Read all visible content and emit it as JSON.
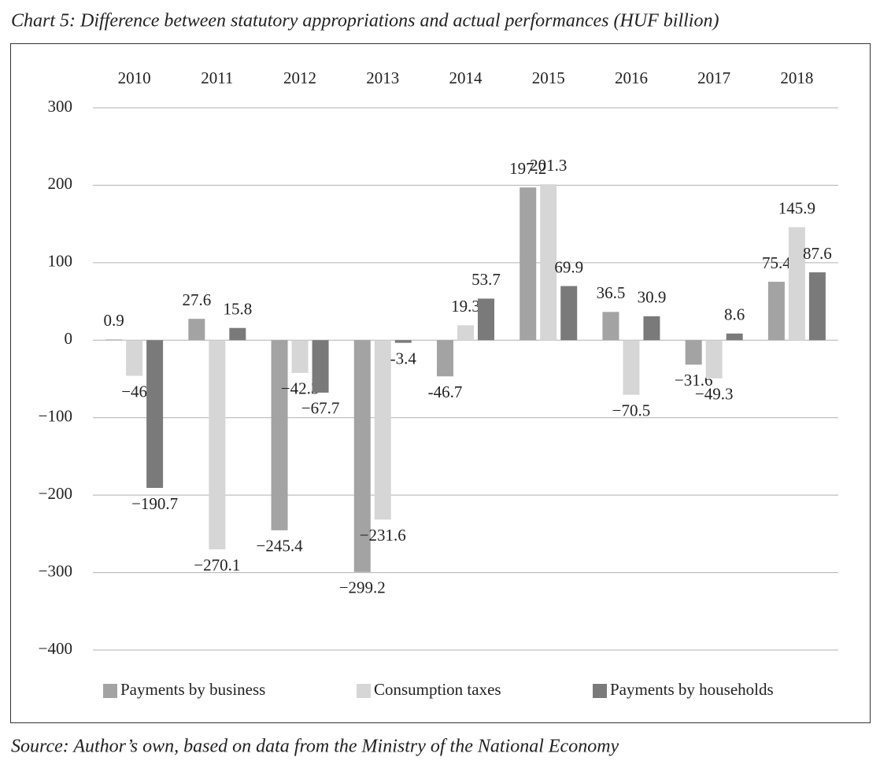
{
  "chart_data": {
    "type": "bar",
    "title": "Chart 5: Difference between statutory appropriations and actual performances (HUF billion)",
    "source": "Source: Author’s own, based on data from the Ministry of the National Economy",
    "categories": [
      "2010",
      "2011",
      "2012",
      "2013",
      "2014",
      "2015",
      "2016",
      "2017",
      "2018"
    ],
    "series": [
      {
        "name": "Payments by business",
        "color": "#a3a3a3",
        "values": [
          0.9,
          27.6,
          -245.4,
          -299.2,
          -46.7,
          197.2,
          36.5,
          -31.6,
          75.4
        ],
        "value_labels": [
          "0.9",
          "27.6",
          "−245.4",
          "−299.2",
          "-46.7",
          "197.2",
          "36.5",
          "−31.6",
          "75.4"
        ]
      },
      {
        "name": "Consumption taxes",
        "color": "#d6d6d6",
        "values": [
          -46,
          -270.1,
          -42.3,
          -231.6,
          19.3,
          201.3,
          -70.5,
          -49.3,
          145.9
        ],
        "value_labels": [
          "−46",
          "−270.1",
          "−42.3",
          "−231.6",
          "19.3",
          "201.3",
          "−70.5",
          "−49.3",
          "145.9"
        ]
      },
      {
        "name": "Payments by households",
        "color": "#7a7a7a",
        "values": [
          -190.7,
          15.8,
          -67.7,
          -3.4,
          53.7,
          69.9,
          30.9,
          8.6,
          87.6
        ],
        "value_labels": [
          "−190.7",
          "15.8",
          "−67.7",
          "-3.4",
          "53.7",
          "69.9",
          "30.9",
          "8.6",
          "87.6"
        ]
      }
    ],
    "ylim": [
      -400,
      300
    ],
    "yticks": [
      300,
      200,
      100,
      0,
      {
        "value": -100,
        "label": "−100"
      },
      {
        "value": -200,
        "label": "−200"
      },
      {
        "value": -300,
        "label": "−300"
      },
      {
        "value": -400,
        "label": "−400"
      }
    ],
    "grid": true,
    "legend": "bottom"
  }
}
